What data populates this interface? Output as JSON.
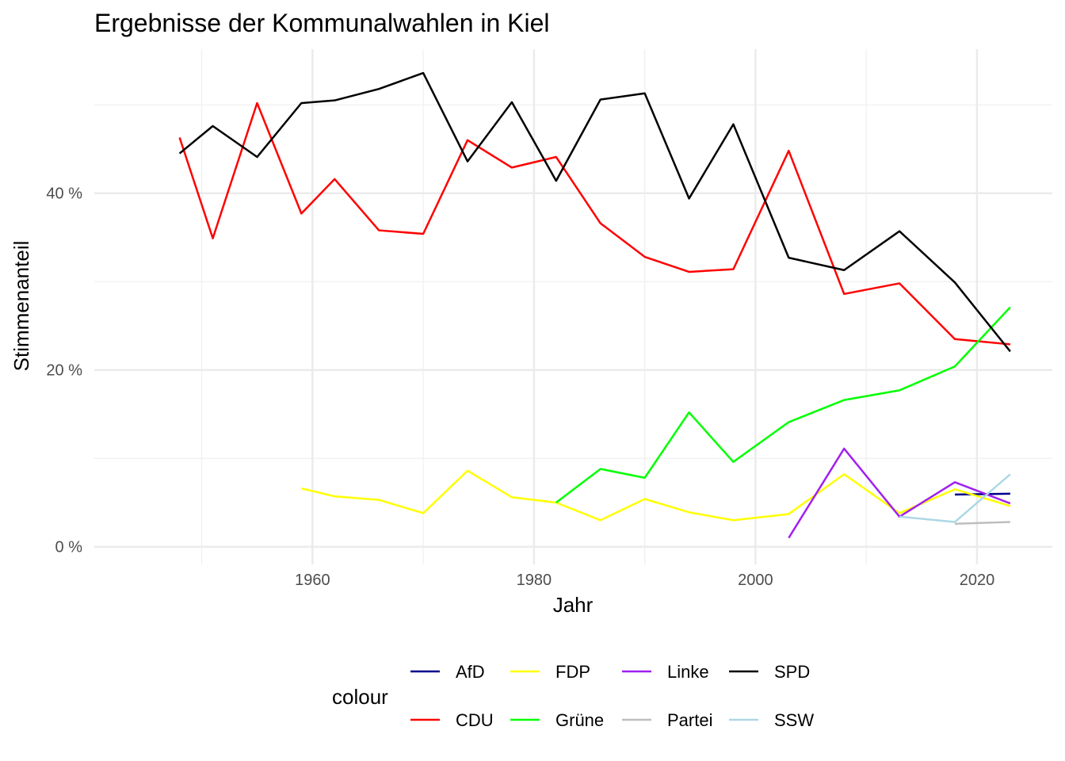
{
  "chart_data": {
    "type": "line",
    "title": "Ergebnisse der Kommunalwahlen in Kiel",
    "xlabel": "Jahr",
    "ylabel": "Stimmenanteil",
    "xlim": [
      1940.3,
      2026.8
    ],
    "ylim": [
      -2,
      56.3
    ],
    "x_ticks": [
      1960,
      1980,
      2000,
      2020
    ],
    "x_tick_labels": [
      "1960",
      "1980",
      "2000",
      "2020"
    ],
    "y_ticks": [
      0,
      20,
      40
    ],
    "y_tick_labels": [
      "0 %",
      "20 %",
      "40 %"
    ],
    "grid": true,
    "legend_title": "colour",
    "legend_position": "bottom",
    "series": [
      {
        "name": "AfD",
        "color": "#00008B",
        "x": [
          2018,
          2023
        ],
        "y": [
          5.9,
          6.0
        ]
      },
      {
        "name": "CDU",
        "color": "#FF0000",
        "x": [
          1948,
          1951,
          1955,
          1959,
          1962,
          1966,
          1970,
          1974,
          1978,
          1982,
          1986,
          1990,
          1994,
          1998,
          2003,
          2008,
          2013,
          2018,
          2023
        ],
        "y": [
          46.3,
          34.9,
          50.2,
          37.7,
          41.6,
          35.8,
          35.4,
          46.0,
          42.9,
          44.1,
          36.6,
          32.8,
          31.1,
          31.4,
          44.8,
          28.6,
          29.8,
          23.5,
          22.9
        ]
      },
      {
        "name": "FDP",
        "color": "#FFFF00",
        "x": [
          1959,
          1962,
          1966,
          1970,
          1974,
          1978,
          1982,
          1986,
          1990,
          1994,
          1998,
          2003,
          2008,
          2013,
          2018,
          2023
        ],
        "y": [
          6.6,
          5.7,
          5.3,
          3.8,
          8.6,
          5.6,
          5.0,
          3.0,
          5.4,
          3.9,
          3.0,
          3.7,
          8.2,
          3.8,
          6.5,
          4.6
        ]
      },
      {
        "name": "Grüne",
        "color": "#00FF00",
        "x": [
          1982,
          1986,
          1990,
          1994,
          1998,
          2003,
          2008,
          2013,
          2018,
          2023
        ],
        "y": [
          5.0,
          8.8,
          7.8,
          15.2,
          9.6,
          14.1,
          16.6,
          17.7,
          20.4,
          27.1
        ]
      },
      {
        "name": "Linke",
        "color": "#A020F0",
        "x": [
          2003,
          2008,
          2013,
          2018,
          2023
        ],
        "y": [
          1.0,
          11.1,
          3.4,
          7.3,
          4.9
        ]
      },
      {
        "name": "Partei",
        "color": "#BEBEBE",
        "x": [
          2018,
          2023
        ],
        "y": [
          2.6,
          2.8
        ]
      },
      {
        "name": "SPD",
        "color": "#000000",
        "x": [
          1948,
          1951,
          1955,
          1959,
          1962,
          1966,
          1970,
          1974,
          1978,
          1982,
          1986,
          1990,
          1994,
          1998,
          2003,
          2008,
          2013,
          2018,
          2023
        ],
        "y": [
          44.5,
          47.6,
          44.1,
          50.2,
          50.5,
          51.8,
          53.6,
          43.6,
          50.3,
          41.4,
          50.6,
          51.3,
          39.4,
          47.8,
          32.7,
          31.3,
          35.7,
          29.9,
          22.1
        ]
      },
      {
        "name": "SSW",
        "color": "#ADD8E6",
        "x": [
          2013,
          2018,
          2023
        ],
        "y": [
          3.4,
          2.8,
          8.2
        ]
      }
    ]
  }
}
